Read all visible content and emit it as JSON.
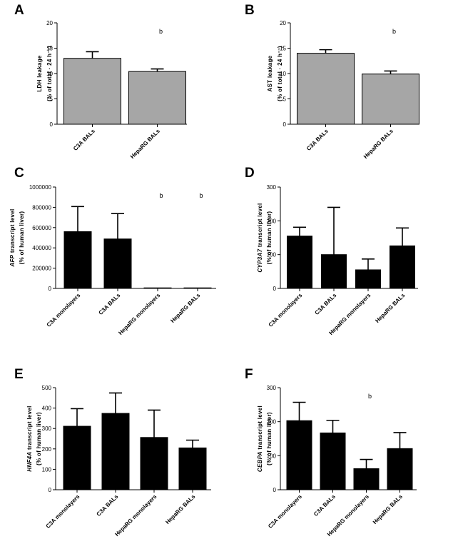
{
  "figure": {
    "panels": [
      "A",
      "B",
      "C",
      "D",
      "E",
      "F"
    ]
  },
  "chart_data": [
    {
      "panel": "A",
      "type": "bar",
      "bar_color": "#a6a6a6",
      "categories": [
        "C3A BALs",
        "HepaRG BALs"
      ],
      "values": [
        13.0,
        10.4
      ],
      "errors": [
        1.3,
        0.5
      ],
      "significance": [
        "",
        "b"
      ],
      "ylabel_italic": "",
      "ylabel_line1": "LDH leakage",
      "ylabel_line2": "(% of total · 24 h⁻¹)",
      "ylim": [
        0,
        20
      ],
      "yticks": [
        0,
        5,
        10,
        15,
        20
      ],
      "ytick_labels": [
        "0",
        "5",
        "10",
        "15",
        "20"
      ]
    },
    {
      "panel": "B",
      "type": "bar",
      "bar_color": "#a6a6a6",
      "categories": [
        "C3A BALs",
        "HepaRG BALs"
      ],
      "values": [
        14.0,
        9.9
      ],
      "errors": [
        0.7,
        0.6
      ],
      "significance": [
        "",
        "b"
      ],
      "ylabel_italic": "",
      "ylabel_line1": "AST leakage",
      "ylabel_line2": "(% of total · 24 h⁻¹)",
      "ylim": [
        0,
        20
      ],
      "yticks": [
        0,
        5,
        10,
        15,
        20
      ],
      "ytick_labels": [
        "0",
        "5",
        "10",
        "15",
        "20"
      ]
    },
    {
      "panel": "C",
      "type": "bar",
      "bar_color": "#000000",
      "categories": [
        "C3A monolayers",
        "C3A BALs",
        "HepaRG monolayers",
        "HepaRG BALs"
      ],
      "values": [
        560000,
        488000,
        1500,
        1500
      ],
      "errors": [
        248000,
        250000,
        0,
        0
      ],
      "significance": [
        "",
        "",
        "b",
        "b"
      ],
      "ylabel_italic": "AFP",
      "ylabel_line1": " transcript level",
      "ylabel_line2": "(% of human liver)",
      "ylim": [
        0,
        1000000
      ],
      "yticks": [
        0,
        200000,
        400000,
        600000,
        800000,
        1000000
      ],
      "ytick_labels": [
        "0",
        "200000",
        "400000",
        "600000",
        "800000",
        "1000000"
      ]
    },
    {
      "panel": "D",
      "type": "bar",
      "bar_color": "#000000",
      "categories": [
        "C3A monolayers",
        "C3A BALs",
        "HepaRG monolayers",
        "HepaRG BALs"
      ],
      "values": [
        155,
        100,
        55,
        126
      ],
      "errors": [
        26,
        140,
        32,
        53
      ],
      "significance": [
        "",
        "",
        "",
        ""
      ],
      "ylabel_italic": "CYP3A7",
      "ylabel_line1": " transcript level",
      "ylabel_line2": "(% of human liver)",
      "ylim": [
        0,
        300
      ],
      "yticks": [
        0,
        100,
        200,
        300
      ],
      "ytick_labels": [
        "0",
        "100",
        "200",
        "300"
      ]
    },
    {
      "panel": "E",
      "type": "bar",
      "bar_color": "#000000",
      "categories": [
        "C3A monolayers",
        "C3A BALs",
        "HepaRG monolayers",
        "HepaRG BALs"
      ],
      "values": [
        311,
        374,
        256,
        205
      ],
      "errors": [
        86,
        100,
        134,
        38
      ],
      "significance": [
        "",
        "",
        "",
        ""
      ],
      "ylabel_italic": "HNF4A",
      "ylabel_line1": " transcript level",
      "ylabel_line2": "(% of human liver)",
      "ylim": [
        0,
        500
      ],
      "yticks": [
        0,
        100,
        200,
        300,
        400,
        500
      ],
      "ytick_labels": [
        "0",
        "100",
        "200",
        "300",
        "400",
        "500"
      ]
    },
    {
      "panel": "F",
      "type": "bar",
      "bar_color": "#000000",
      "categories": [
        "C3A monolayers",
        "C3A BALs",
        "HepaRG monolayers",
        "HepaRG BALs"
      ],
      "values": [
        203,
        167,
        62,
        121
      ],
      "errors": [
        54,
        37,
        27,
        47
      ],
      "significance": [
        "",
        "",
        "b",
        ""
      ],
      "ylabel_italic": "CEBPA",
      "ylabel_line1": " transcript level",
      "ylabel_line2": "(% of human liver)",
      "ylim": [
        0,
        300
      ],
      "yticks": [
        0,
        100,
        200,
        300
      ],
      "ytick_labels": [
        "0",
        "100",
        "200",
        "300"
      ]
    }
  ]
}
